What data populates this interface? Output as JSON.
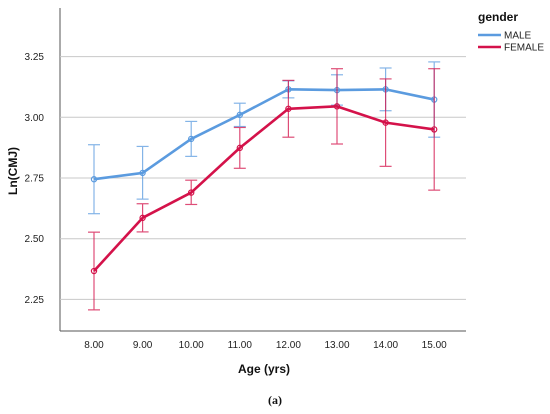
{
  "chart_data": {
    "type": "line",
    "xlabel": "Age (yrs)",
    "ylabel": "Ln(CMJ)",
    "categories": [
      "8.00",
      "9.00",
      "10.00",
      "11.00",
      "12.00",
      "13.00",
      "14.00",
      "15.00"
    ],
    "ylim": [
      2.12,
      3.45
    ],
    "yticks": [
      2.25,
      2.5,
      2.75,
      3.0,
      3.25
    ],
    "ytick_labels": [
      "2.25",
      "2.50",
      "2.75",
      "3.00",
      "3.25"
    ],
    "grid": "horizontal",
    "legend": {
      "title": "gender",
      "position": "top-right"
    },
    "series": [
      {
        "name": "MALE",
        "color": "#5b9bdf",
        "values": [
          2.745,
          2.771,
          2.911,
          3.01,
          3.115,
          3.112,
          3.115,
          3.073
        ],
        "error_low": [
          2.603,
          2.663,
          2.839,
          2.962,
          3.08,
          3.05,
          3.027,
          2.918
        ],
        "error_high": [
          2.887,
          2.88,
          2.983,
          3.058,
          3.15,
          3.175,
          3.203,
          3.228
        ]
      },
      {
        "name": "FEMALE",
        "color": "#d4124a",
        "values": [
          2.367,
          2.586,
          2.69,
          2.874,
          3.035,
          3.045,
          2.978,
          2.95
        ],
        "error_low": [
          2.207,
          2.528,
          2.641,
          2.79,
          2.918,
          2.89,
          2.798,
          2.7
        ],
        "error_high": [
          2.527,
          2.644,
          2.741,
          2.958,
          3.152,
          3.2,
          3.158,
          3.2
        ]
      }
    ]
  },
  "caption": "(a)"
}
